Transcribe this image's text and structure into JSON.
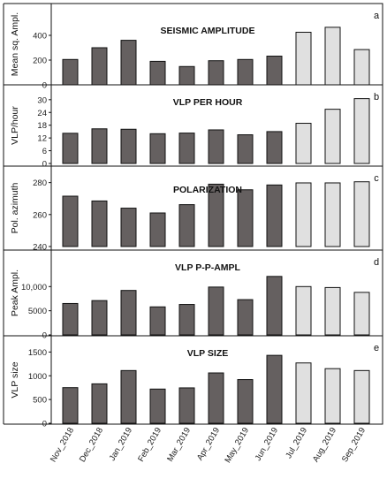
{
  "chart_data": [
    {
      "type": "bar",
      "panel_letter": "a",
      "title": "SEISMIC AMPLITUDE",
      "ylabel": "Mean sq. Ampl.",
      "ylim": [
        0,
        500
      ],
      "yticks": [
        0,
        200,
        400
      ],
      "ytick_labels": [
        "0",
        "200",
        "400"
      ],
      "categories": [
        "Nov_2018",
        "Dec_2018",
        "Jan_2019",
        "Feb_2019",
        "Mar_2019",
        "Apr_2019",
        "May_2019",
        "Jun_2019",
        "Jul_2019",
        "Aug_2019",
        "Sep_2019"
      ],
      "values": [
        205,
        300,
        360,
        190,
        148,
        195,
        205,
        232,
        425,
        465,
        285
      ]
    },
    {
      "type": "bar",
      "panel_letter": "b",
      "title": "VLP PER HOUR",
      "ylabel": "VLP/hour",
      "ylim": [
        0,
        32
      ],
      "yticks": [
        0,
        6,
        12,
        18,
        24,
        30
      ],
      "ytick_labels": [
        "0",
        "6",
        "12",
        "18",
        "24",
        "30"
      ],
      "categories": [
        "Nov_2018",
        "Dec_2018",
        "Jan_2019",
        "Feb_2019",
        "Mar_2019",
        "Apr_2019",
        "May_2019",
        "Jun_2019",
        "Jul_2019",
        "Aug_2019",
        "Sep_2019"
      ],
      "values": [
        14.2,
        16.3,
        16.1,
        14.0,
        14.3,
        15.8,
        13.5,
        15.0,
        18.9,
        25.5,
        30.5
      ]
    },
    {
      "type": "bar",
      "panel_letter": "c",
      "title": "POLARIZATION",
      "ylabel": "Pol. azimuth",
      "ylim": [
        240,
        282
      ],
      "yticks": [
        240,
        260,
        280
      ],
      "ytick_labels": [
        "240",
        "260",
        "280"
      ],
      "categories": [
        "Nov_2018",
        "Dec_2018",
        "Jan_2019",
        "Feb_2019",
        "Mar_2019",
        "Apr_2019",
        "May_2019",
        "Jun_2019",
        "Jul_2019",
        "Aug_2019",
        "Sep_2019"
      ],
      "values": [
        271.5,
        268.5,
        264,
        261,
        266.2,
        279,
        275.5,
        278.5,
        279.8,
        279.8,
        280.5
      ]
    },
    {
      "type": "bar",
      "panel_letter": "d",
      "title": "VLP P-P-AMPL",
      "ylabel": "Peak Ampl.",
      "ylim": [
        0,
        12800
      ],
      "yticks": [
        0,
        5000,
        10000
      ],
      "ytick_labels": [
        "0",
        "5000",
        "10,000"
      ],
      "categories": [
        "Nov_2018",
        "Dec_2018",
        "Jan_2019",
        "Feb_2019",
        "Mar_2019",
        "Apr_2019",
        "May_2019",
        "Jun_2019",
        "Jul_2019",
        "Aug_2019",
        "Sep_2019"
      ],
      "values": [
        6500,
        7100,
        9200,
        5800,
        6300,
        9900,
        7300,
        12100,
        10000,
        9800,
        8800
      ]
    },
    {
      "type": "bar",
      "panel_letter": "e",
      "title": "VLP SIZE",
      "ylabel": "VLP size",
      "ylim": [
        0,
        1600
      ],
      "yticks": [
        0,
        500,
        1000,
        1500
      ],
      "ytick_labels": [
        "0",
        "500",
        "1000",
        "1500"
      ],
      "categories": [
        "Nov_2018",
        "Dec_2018",
        "Jan_2019",
        "Feb_2019",
        "Mar_2019",
        "Apr_2019",
        "May_2019",
        "Jun_2019",
        "Jul_2019",
        "Aug_2019",
        "Sep_2019"
      ],
      "values": [
        750,
        830,
        1110,
        720,
        745,
        1060,
        920,
        1430,
        1270,
        1150,
        1110
      ],
      "xtick_labels_shown": true
    }
  ],
  "colors": {
    "dark_bar": "#656060",
    "light_bar": "#e0e0e0",
    "bar_edge": "#111111",
    "dark_bar_count": 8
  }
}
